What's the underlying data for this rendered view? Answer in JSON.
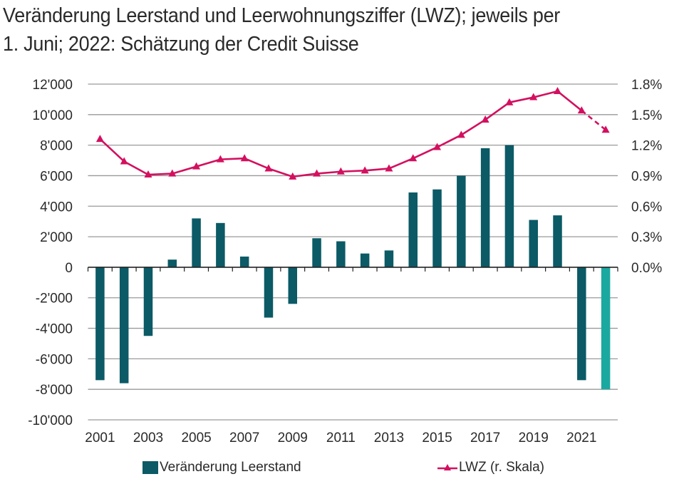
{
  "title_line1": "Veränderung Leerstand und Leerwohnungsziffer (LWZ); jeweils per",
  "title_line2": "1. Juni; 2022: Schätzung der Credit Suisse",
  "colors": {
    "bars": "#0b5a66",
    "bar_estimate": "#1aa9a0",
    "line": "#d3105f",
    "grid": "#9a9a9a",
    "axis": "#222222",
    "text": "#2a2a2a"
  },
  "chart_data": {
    "type": "bar",
    "title": "Veränderung Leerstand und Leerwohnungsziffer (LWZ); jeweils per 1. Juni; 2022: Schätzung der Credit Suisse",
    "categories": [
      "2001",
      "2002",
      "2003",
      "2004",
      "2005",
      "2006",
      "2007",
      "2008",
      "2009",
      "2010",
      "2011",
      "2012",
      "2013",
      "2014",
      "2015",
      "2016",
      "2017",
      "2018",
      "2019",
      "2020",
      "2021",
      "2022"
    ],
    "x_tick_labels": [
      "2001",
      "2003",
      "2005",
      "2007",
      "2009",
      "2011",
      "2013",
      "2015",
      "2017",
      "2019",
      "2021"
    ],
    "series": [
      {
        "name": "Veränderung Leerstand",
        "type": "bar",
        "axis": "left",
        "values": [
          -7400,
          -7600,
          -4500,
          500,
          3200,
          2900,
          700,
          -3300,
          -2400,
          1900,
          1700,
          900,
          1100,
          4900,
          5100,
          6000,
          7800,
          8000,
          3100,
          3400,
          -7400,
          -8000
        ],
        "estimate_index": 21
      },
      {
        "name": "LWZ (r. Skala)",
        "type": "line",
        "axis": "right",
        "unit": "%",
        "values": [
          1.26,
          1.04,
          0.91,
          0.92,
          0.99,
          1.06,
          1.07,
          0.97,
          0.89,
          0.92,
          0.94,
          0.95,
          0.97,
          1.07,
          1.18,
          1.3,
          1.45,
          1.62,
          1.67,
          1.73,
          1.54,
          1.35
        ],
        "dashed_from_index": 20
      }
    ],
    "left_axis": {
      "ylim": [
        -10000,
        12000
      ],
      "ticks": [
        12000,
        10000,
        8000,
        6000,
        4000,
        2000,
        0,
        -2000,
        -4000,
        -6000,
        -8000,
        -10000
      ],
      "tick_labels": [
        "12'000",
        "10'000",
        "8'000",
        "6'000",
        "4'000",
        "2'000",
        "0",
        "-2'000",
        "-4'000",
        "-6'000",
        "-8'000",
        "-10'000"
      ]
    },
    "right_axis": {
      "ylim": [
        0.0,
        1.8
      ],
      "ticks": [
        1.8,
        1.5,
        1.2,
        0.9,
        0.6,
        0.3,
        0.0
      ],
      "tick_labels": [
        "1.8%",
        "1.5%",
        "1.2%",
        "0.9%",
        "0.6%",
        "0.3%",
        "0.0%"
      ]
    },
    "xlabel": "",
    "ylabel": "",
    "grid": true,
    "legend": {
      "placement": "bottom",
      "entries": [
        "Veränderung Leerstand",
        "LWZ (r. Skala)"
      ]
    }
  }
}
